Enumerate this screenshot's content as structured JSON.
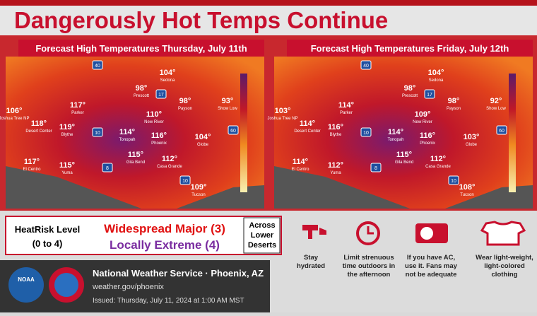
{
  "title": "Dangerously Hot Temps Continue",
  "maps": [
    {
      "header": "Forecast High Temperatures Thursday, July 11th",
      "cities": [
        {
          "temp": "106°",
          "name": "Joshua Tree NP"
        },
        {
          "temp": "118°",
          "name": "Desert Center"
        },
        {
          "temp": "117°",
          "name": "Parker"
        },
        {
          "temp": "119°",
          "name": "Blythe"
        },
        {
          "temp": "117°",
          "name": "El Centro"
        },
        {
          "temp": "115°",
          "name": "Yuma"
        },
        {
          "temp": "98°",
          "name": "Prescott"
        },
        {
          "temp": "104°",
          "name": "Sedona"
        },
        {
          "temp": "98°",
          "name": "Payson"
        },
        {
          "temp": "93°",
          "name": "Show Low"
        },
        {
          "temp": "110°",
          "name": "New River"
        },
        {
          "temp": "116°",
          "name": "Phoenix"
        },
        {
          "temp": "114°",
          "name": "Tonopah"
        },
        {
          "temp": "104°",
          "name": "Globe"
        },
        {
          "temp": "115°",
          "name": "Gila Bend"
        },
        {
          "temp": "112°",
          "name": "Casa Grande"
        },
        {
          "temp": "109°",
          "name": "Tucson"
        }
      ],
      "shields": [
        "40",
        "17",
        "10",
        "8",
        "10",
        "60"
      ]
    },
    {
      "header": "Forecast High Temperatures Friday, July 12th",
      "cities": [
        {
          "temp": "103°",
          "name": "Joshua Tree NP"
        },
        {
          "temp": "114°",
          "name": "Desert Center"
        },
        {
          "temp": "114°",
          "name": "Parker"
        },
        {
          "temp": "116°",
          "name": "Blythe"
        },
        {
          "temp": "114°",
          "name": "El Centro"
        },
        {
          "temp": "112°",
          "name": "Yuma"
        },
        {
          "temp": "98°",
          "name": "Prescott"
        },
        {
          "temp": "104°",
          "name": "Sedona"
        },
        {
          "temp": "98°",
          "name": "Payson"
        },
        {
          "temp": "92°",
          "name": "Show Low"
        },
        {
          "temp": "109°",
          "name": "New River"
        },
        {
          "temp": "116°",
          "name": "Phoenix"
        },
        {
          "temp": "114°",
          "name": "Tonopah"
        },
        {
          "temp": "103°",
          "name": "Globe"
        },
        {
          "temp": "115°",
          "name": "Gila Bend"
        },
        {
          "temp": "112°",
          "name": "Casa Grande"
        },
        {
          "temp": "108°",
          "name": "Tucson"
        }
      ],
      "shields": [
        "40",
        "17",
        "10",
        "8",
        "10",
        "60"
      ]
    }
  ],
  "heatrisk": {
    "label": "HeatRisk Level",
    "range": "(0 to 4)",
    "major": "Widespread Major (3)",
    "extreme": "Locally Extreme (4)",
    "area": [
      "Across",
      "Lower",
      "Deserts"
    ]
  },
  "tips": [
    {
      "text": [
        "Stay",
        "hydrated"
      ]
    },
    {
      "text": [
        "Limit strenuous",
        "time outdoors in",
        "the afternoon"
      ]
    },
    {
      "text": [
        "If you have AC,",
        "use it. Fans may",
        "not be adequate"
      ]
    },
    {
      "text": [
        "Wear light-weight,",
        "light-colored",
        "clothing"
      ]
    }
  ],
  "footer": {
    "logo_left": "NOAA",
    "office": "National Weather Service · Phoenix, AZ",
    "url": "weather.gov/phoenix",
    "issued": "Issued: Thursday, July 11, 2024 at 1:00 AM MST"
  }
}
